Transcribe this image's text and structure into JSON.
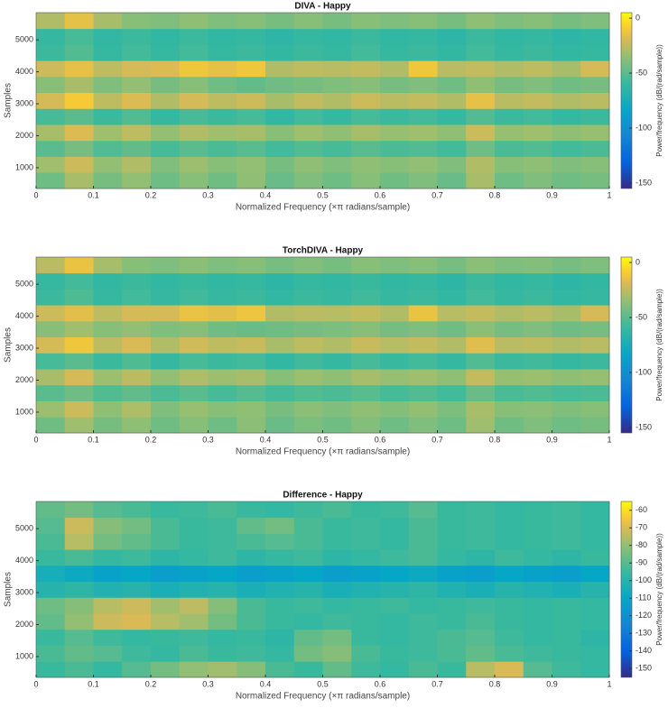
{
  "chart_data": [
    {
      "type": "heatmap",
      "title": "DIVA - Happy",
      "x_label": "Normalized Frequency  (×π radians/sample)",
      "y_label": "Samples",
      "colorbar_label": "Power/frequency (dB/(rad/sample))",
      "colormap": "parula",
      "xlim": [
        0,
        1
      ],
      "ylim": [
        350,
        5850
      ],
      "xticks": [
        0,
        0.1,
        0.2,
        0.3,
        0.4,
        0.5,
        0.6,
        0.7,
        0.8,
        0.9,
        1
      ],
      "yticks": [
        1000,
        2000,
        3000,
        4000,
        5000
      ],
      "clim": [
        -155,
        5
      ],
      "cticks": [
        0,
        -50,
        -100,
        -150
      ],
      "x": [
        0.025,
        0.075,
        0.125,
        0.175,
        0.225,
        0.275,
        0.325,
        0.375,
        0.425,
        0.475,
        0.525,
        0.575,
        0.625,
        0.675,
        0.725,
        0.775,
        0.825,
        0.875,
        0.925,
        0.975
      ],
      "y": [
        600,
        1100,
        1600,
        2100,
        2600,
        3100,
        3600,
        4100,
        4600,
        5100,
        5600
      ],
      "z": [
        [
          -45,
          -30,
          -42,
          -35,
          -45,
          -38,
          -44,
          -36,
          -46,
          -40,
          -45,
          -38,
          -44,
          -40,
          -46,
          -30,
          -45,
          -40,
          -44,
          -42
        ],
        [
          -32,
          -22,
          -35,
          -28,
          -40,
          -33,
          -38,
          -35,
          -42,
          -36,
          -40,
          -36,
          -38,
          -35,
          -40,
          -28,
          -38,
          -36,
          -40,
          -38
        ],
        [
          -50,
          -42,
          -52,
          -48,
          -55,
          -50,
          -54,
          -50,
          -56,
          -52,
          -55,
          -50,
          -54,
          -52,
          -56,
          -45,
          -54,
          -52,
          -56,
          -54
        ],
        [
          -30,
          -18,
          -32,
          -25,
          -35,
          -28,
          -32,
          -30,
          -38,
          -32,
          -36,
          -30,
          -34,
          -32,
          -36,
          -22,
          -34,
          -32,
          -36,
          -34
        ],
        [
          -55,
          -50,
          -58,
          -52,
          -60,
          -55,
          -58,
          -55,
          -62,
          -56,
          -60,
          -55,
          -58,
          -56,
          -60,
          -52,
          -58,
          -56,
          -60,
          -58
        ],
        [
          -20,
          -10,
          -25,
          -18,
          -28,
          -20,
          -25,
          -22,
          -30,
          -24,
          -28,
          -22,
          -26,
          -24,
          -28,
          -15,
          -26,
          -24,
          -28,
          -26
        ],
        [
          -38,
          -30,
          -40,
          -35,
          -42,
          -38,
          -45,
          -48,
          -44,
          -42,
          -40,
          -38,
          -42,
          -40,
          -44,
          -36,
          -42,
          -40,
          -44,
          -42
        ],
        [
          -22,
          -15,
          -25,
          -20,
          -18,
          -12,
          -15,
          -12,
          -28,
          -25,
          -26,
          -24,
          -28,
          -12,
          -26,
          -24,
          -28,
          -25,
          -30,
          -20
        ],
        [
          -58,
          -52,
          -60,
          -56,
          -60,
          -56,
          -60,
          -58,
          -62,
          -58,
          -60,
          -56,
          -60,
          -58,
          -62,
          -56,
          -60,
          -58,
          -62,
          -60
        ],
        [
          -60,
          -55,
          -62,
          -58,
          -62,
          -58,
          -62,
          -60,
          -64,
          -60,
          -62,
          -58,
          -62,
          -60,
          -64,
          -58,
          -62,
          -60,
          -64,
          -62
        ],
        [
          -28,
          -15,
          -30,
          -38,
          -40,
          -36,
          -40,
          -38,
          -42,
          -38,
          -42,
          -38,
          -40,
          -38,
          -42,
          -36,
          -40,
          -38,
          -42,
          -40
        ]
      ]
    },
    {
      "type": "heatmap",
      "title": "TorchDIVA - Happy",
      "x_label": "Normalized Frequency  (×π radians/sample)",
      "y_label": "Samples",
      "colorbar_label": "Power/frequency (dB/(rad/sample))",
      "colormap": "parula",
      "xlim": [
        0,
        1
      ],
      "ylim": [
        350,
        5850
      ],
      "xticks": [
        0,
        0.1,
        0.2,
        0.3,
        0.4,
        0.5,
        0.6,
        0.7,
        0.8,
        0.9,
        1
      ],
      "yticks": [
        1000,
        2000,
        3000,
        4000,
        5000
      ],
      "clim": [
        -155,
        5
      ],
      "cticks": [
        0,
        -50,
        -100,
        -150
      ],
      "x": [
        0.025,
        0.075,
        0.125,
        0.175,
        0.225,
        0.275,
        0.325,
        0.375,
        0.425,
        0.475,
        0.525,
        0.575,
        0.625,
        0.675,
        0.725,
        0.775,
        0.825,
        0.875,
        0.925,
        0.975
      ],
      "y": [
        600,
        1100,
        1600,
        2100,
        2600,
        3100,
        3600,
        4100,
        4600,
        5100,
        5600
      ],
      "z": [
        [
          -44,
          -32,
          -42,
          -36,
          -44,
          -38,
          -45,
          -37,
          -46,
          -41,
          -44,
          -39,
          -45,
          -40,
          -45,
          -32,
          -44,
          -40,
          -45,
          -42
        ],
        [
          -33,
          -22,
          -36,
          -29,
          -40,
          -34,
          -38,
          -36,
          -42,
          -37,
          -40,
          -36,
          -39,
          -35,
          -41,
          -30,
          -38,
          -37,
          -40,
          -38
        ],
        [
          -50,
          -44,
          -52,
          -48,
          -54,
          -50,
          -55,
          -51,
          -56,
          -52,
          -54,
          -50,
          -55,
          -52,
          -56,
          -46,
          -54,
          -52,
          -55,
          -54
        ],
        [
          -30,
          -20,
          -33,
          -26,
          -35,
          -29,
          -33,
          -30,
          -38,
          -33,
          -36,
          -31,
          -34,
          -32,
          -36,
          -24,
          -34,
          -33,
          -36,
          -34
        ],
        [
          -55,
          -50,
          -58,
          -53,
          -60,
          -55,
          -58,
          -56,
          -62,
          -57,
          -60,
          -55,
          -59,
          -56,
          -60,
          -52,
          -58,
          -57,
          -60,
          -58
        ],
        [
          -20,
          -12,
          -25,
          -19,
          -28,
          -21,
          -25,
          -23,
          -30,
          -25,
          -28,
          -23,
          -27,
          -24,
          -28,
          -17,
          -26,
          -25,
          -28,
          -26
        ],
        [
          -38,
          -32,
          -38,
          -35,
          -40,
          -38,
          -44,
          -46,
          -44,
          -42,
          -41,
          -38,
          -42,
          -40,
          -44,
          -37,
          -42,
          -40,
          -44,
          -42
        ],
        [
          -22,
          -16,
          -25,
          -20,
          -20,
          -14,
          -16,
          -13,
          -28,
          -26,
          -27,
          -24,
          -28,
          -14,
          -27,
          -24,
          -28,
          -26,
          -30,
          -20
        ],
        [
          -58,
          -53,
          -60,
          -56,
          -60,
          -57,
          -60,
          -58,
          -62,
          -58,
          -60,
          -57,
          -60,
          -58,
          -62,
          -56,
          -60,
          -58,
          -62,
          -60
        ],
        [
          -60,
          -56,
          -62,
          -58,
          -62,
          -59,
          -62,
          -60,
          -64,
          -60,
          -62,
          -59,
          -62,
          -60,
          -64,
          -58,
          -62,
          -60,
          -64,
          -62
        ],
        [
          -26,
          -14,
          -30,
          -38,
          -40,
          -37,
          -40,
          -38,
          -42,
          -39,
          -42,
          -38,
          -40,
          -38,
          -42,
          -37,
          -40,
          -39,
          -42,
          -40
        ]
      ]
    },
    {
      "type": "heatmap",
      "title": "Difference - Happy",
      "x_label": "Normalized Frequency  (×π radians/sample)",
      "y_label": "Samples",
      "colorbar_label": "Power/frequency (dB/(rad/sample))",
      "colormap": "parula",
      "xlim": [
        0,
        1
      ],
      "ylim": [
        350,
        5850
      ],
      "xticks": [
        0,
        0.1,
        0.2,
        0.3,
        0.4,
        0.5,
        0.6,
        0.7,
        0.8,
        0.9,
        1
      ],
      "yticks": [
        1000,
        2000,
        3000,
        4000,
        5000
      ],
      "clim": [
        -155,
        -55
      ],
      "cticks": [
        -60,
        -70,
        -80,
        -90,
        -100,
        -110,
        -120,
        -130,
        -140,
        -150
      ],
      "x": [
        0.025,
        0.075,
        0.125,
        0.175,
        0.225,
        0.275,
        0.325,
        0.375,
        0.425,
        0.475,
        0.525,
        0.575,
        0.625,
        0.675,
        0.725,
        0.775,
        0.825,
        0.875,
        0.925,
        0.975
      ],
      "y": [
        600,
        1100,
        1600,
        2100,
        2600,
        3100,
        3600,
        4100,
        4600,
        5100,
        5600
      ],
      "z": [
        [
          -95,
          -92,
          -96,
          -90,
          -85,
          -80,
          -78,
          -82,
          -92,
          -95,
          -88,
          -94,
          -96,
          -92,
          -95,
          -75,
          -70,
          -90,
          -94,
          -96
        ],
        [
          -92,
          -88,
          -90,
          -94,
          -96,
          -92,
          -95,
          -94,
          -96,
          -85,
          -82,
          -92,
          -95,
          -94,
          -92,
          -88,
          -92,
          -94,
          -95,
          -96
        ],
        [
          -95,
          -90,
          -94,
          -96,
          -95,
          -94,
          -96,
          -95,
          -98,
          -88,
          -85,
          -95,
          -96,
          -94,
          -92,
          -90,
          -94,
          -96,
          -95,
          -98
        ],
        [
          -88,
          -80,
          -72,
          -70,
          -75,
          -78,
          -85,
          -92,
          -95,
          -96,
          -94,
          -95,
          -96,
          -94,
          -95,
          -92,
          -95,
          -96,
          -95,
          -96
        ],
        [
          -86,
          -82,
          -75,
          -72,
          -78,
          -74,
          -82,
          -92,
          -95,
          -94,
          -96,
          -95,
          -94,
          -96,
          -95,
          -94,
          -95,
          -96,
          -95,
          -96
        ],
        [
          -100,
          -98,
          -102,
          -100,
          -104,
          -102,
          -100,
          -104,
          -102,
          -100,
          -104,
          -102,
          -100,
          -98,
          -102,
          -104,
          -100,
          -102,
          -104,
          -100
        ],
        [
          -105,
          -108,
          -112,
          -110,
          -114,
          -112,
          -110,
          -114,
          -112,
          -110,
          -114,
          -112,
          -110,
          -108,
          -112,
          -114,
          -110,
          -112,
          -114,
          -110
        ],
        [
          -95,
          -92,
          -96,
          -94,
          -98,
          -96,
          -94,
          -98,
          -96,
          -94,
          -98,
          -96,
          -94,
          -92,
          -96,
          -98,
          -94,
          -96,
          -98,
          -95
        ],
        [
          -92,
          -75,
          -85,
          -88,
          -92,
          -95,
          -94,
          -92,
          -90,
          -92,
          -95,
          -94,
          -96,
          -92,
          -95,
          -94,
          -96,
          -95,
          -94,
          -96
        ],
        [
          -90,
          -72,
          -82,
          -85,
          -92,
          -95,
          -94,
          -88,
          -85,
          -92,
          -95,
          -94,
          -96,
          -92,
          -95,
          -94,
          -96,
          -95,
          -94,
          -96
        ],
        [
          -88,
          -85,
          -90,
          -92,
          -95,
          -94,
          -92,
          -95,
          -96,
          -94,
          -92,
          -95,
          -94,
          -90,
          -95,
          -94,
          -96,
          -95,
          -94,
          -96
        ]
      ]
    }
  ]
}
